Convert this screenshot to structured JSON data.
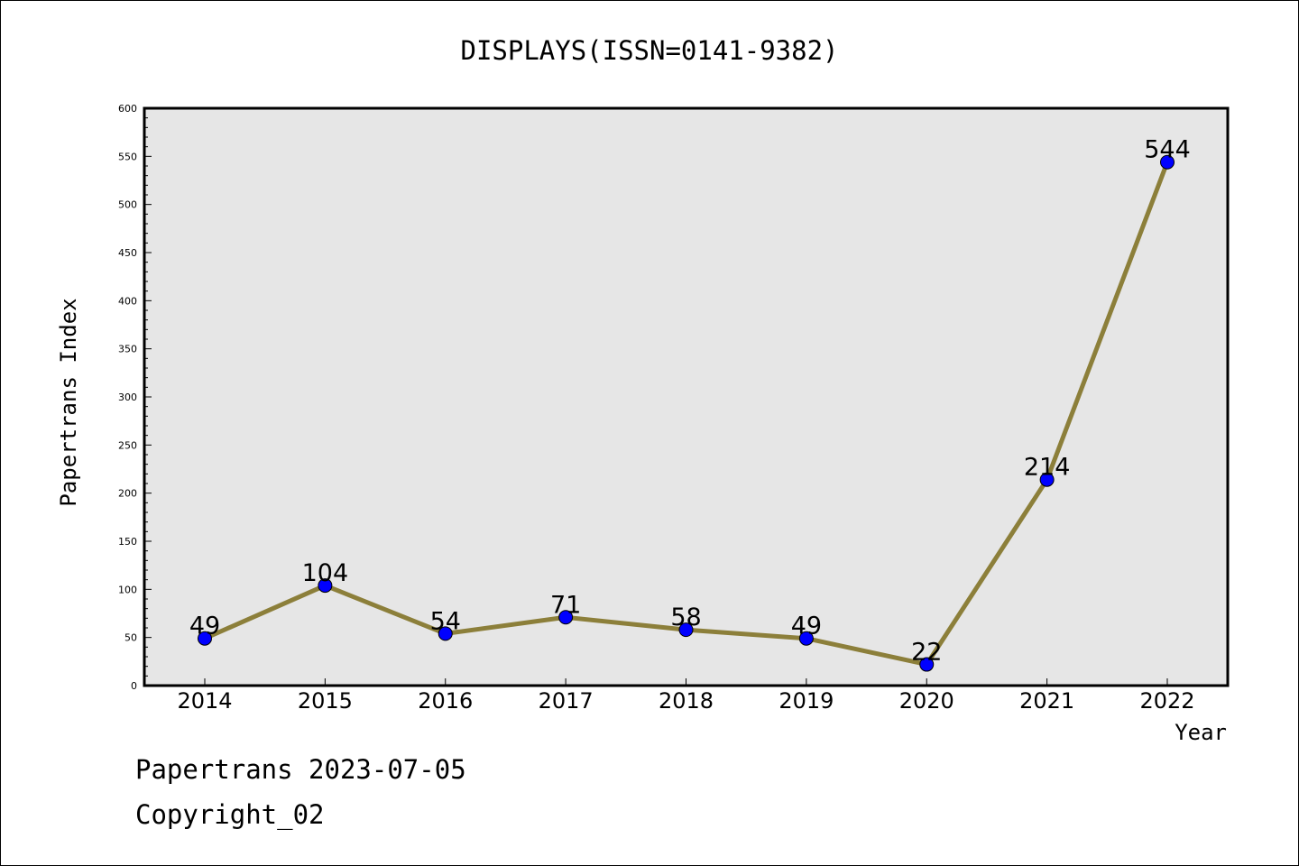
{
  "chart_data": {
    "type": "line",
    "title": "DISPLAYS(ISSN=0141-9382)",
    "xlabel": "Year",
    "ylabel": "Papertrans Index",
    "categories": [
      "2014",
      "2015",
      "2016",
      "2017",
      "2018",
      "2019",
      "2020",
      "2021",
      "2022"
    ],
    "series": [
      {
        "values": [
          49,
          104,
          54,
          71,
          58,
          49,
          22,
          214,
          544
        ]
      }
    ],
    "data_labels": [
      "49",
      "104",
      "54",
      "71",
      "58",
      "49",
      "22",
      "214",
      "544"
    ],
    "ylim": [
      0,
      600
    ],
    "yticks": [
      0,
      50,
      100,
      150,
      200,
      250,
      300,
      350,
      400,
      450,
      500,
      550,
      600
    ],
    "grid": false,
    "colors": {
      "line": "#8c7f3a",
      "marker": "#0000ff",
      "plot_bg": "#e6e6e6"
    }
  },
  "footer": {
    "line1": "Papertrans 2023-07-05",
    "line2": "Copyright_02"
  }
}
